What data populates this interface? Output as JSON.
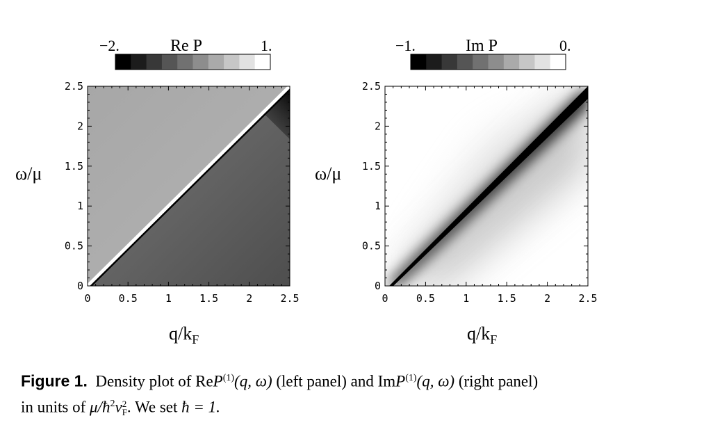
{
  "chart_data": [
    {
      "type": "heatmap",
      "panel": "left",
      "colorbar": {
        "title": "Re P",
        "min_label": "−2.",
        "max_label": "1.",
        "min": -2,
        "max": 1,
        "steps": 10,
        "colors": [
          "#000000",
          "#1c1c1c",
          "#383838",
          "#555555",
          "#717171",
          "#8d8d8d",
          "#aaaaaa",
          "#c6c6c6",
          "#e2e2e2",
          "#ffffff"
        ]
      },
      "xlabel": "q/k",
      "xlabel_sub": "F",
      "ylabel": "ω/μ",
      "xlim": [
        0,
        2.5
      ],
      "ylim": [
        0,
        2.5
      ],
      "x_ticks": [
        "0",
        "0.5",
        "1",
        "1.5",
        "2",
        "2.5"
      ],
      "y_ticks": [
        "0",
        "0.5",
        "1",
        "1.5",
        "2",
        "2.5"
      ],
      "regions": {
        "upper_value": -0.1,
        "lower_value": -1.0,
        "ridge_value": 1.0,
        "corner_value": -2.0
      }
    },
    {
      "type": "heatmap",
      "panel": "right",
      "colorbar": {
        "title": "Im P",
        "min_label": "−1.",
        "max_label": "0.",
        "min": -1,
        "max": 0,
        "steps": 10,
        "colors": [
          "#000000",
          "#1c1c1c",
          "#383838",
          "#555555",
          "#717171",
          "#8d8d8d",
          "#aaaaaa",
          "#c6c6c6",
          "#e2e2e2",
          "#ffffff"
        ]
      },
      "xlabel": "q/k",
      "xlabel_sub": "F",
      "ylabel": "ω/μ",
      "xlim": [
        0,
        2.5
      ],
      "ylim": [
        0,
        2.5
      ],
      "x_ticks": [
        "0",
        "0.5",
        "1",
        "1.5",
        "2",
        "2.5"
      ],
      "y_ticks": [
        "0",
        "0.5",
        "1",
        "1.5",
        "2",
        "2.5"
      ],
      "regions": {
        "diagonal_value": -1.0,
        "far_value": 0.0
      }
    }
  ],
  "caption": {
    "label": "Figure 1.",
    "text_1": "Density plot of Re",
    "sym_1": "P",
    "sup_1": "(1)",
    "args_1": "(q, ω)",
    "text_2": "(left panel) and Im",
    "sym_2": "P",
    "sup_2": "(1)",
    "args_2": "(q, ω)",
    "text_3": "(right panel)",
    "text_4": "in units of",
    "unit": "μ/ħ",
    "unit_sup": "2",
    "unit_v": "v",
    "unit_v_sub": "F",
    "unit_v_sup": "2",
    "text_5": ". We set",
    "hbar_eq": "ħ = 1."
  }
}
